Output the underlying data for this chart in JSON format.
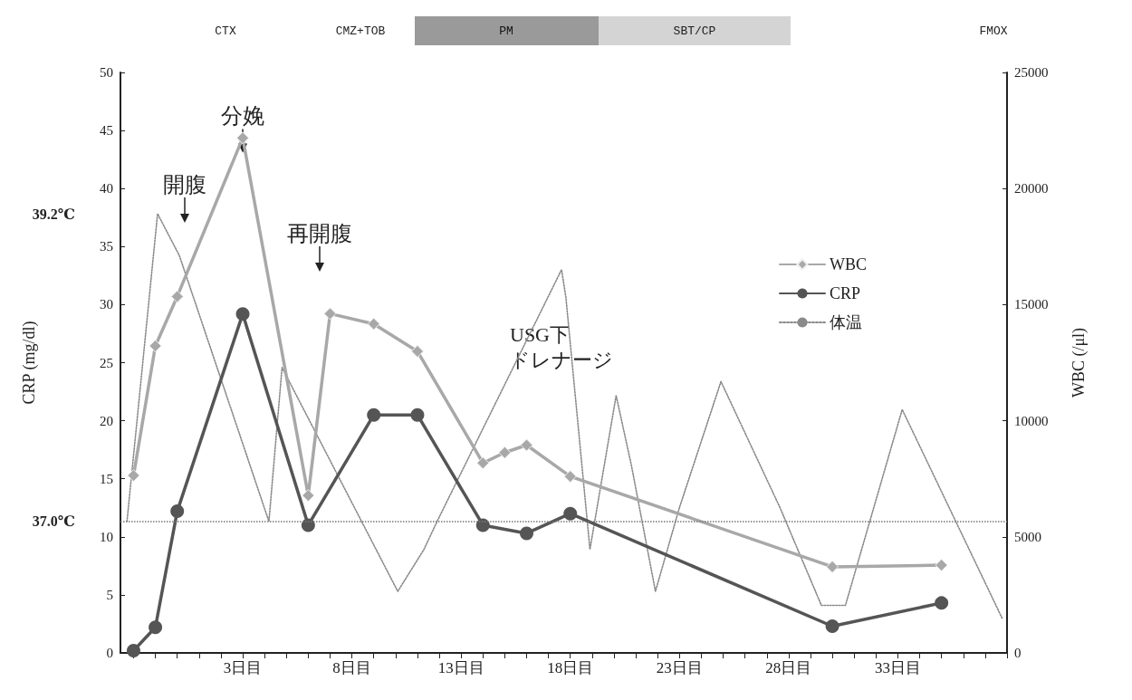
{
  "chart_data": {
    "type": "line",
    "ylabel": "CRP (mg/dl)",
    "y2label": "WBC (/μl)",
    "xlim": [
      -2.6,
      38
    ],
    "xticks": [
      {
        "value": -2,
        "label": null
      },
      {
        "value": -1,
        "label": null
      },
      {
        "value": 0,
        "label": null
      },
      {
        "value": 1,
        "label": null
      },
      {
        "value": 2,
        "label": null
      },
      {
        "value": 3,
        "label": "3日目"
      },
      {
        "value": 4,
        "label": null
      },
      {
        "value": 5,
        "label": null
      },
      {
        "value": 6,
        "label": null
      },
      {
        "value": 7,
        "label": null
      },
      {
        "value": 8,
        "label": "8日目"
      },
      {
        "value": 9,
        "label": null
      },
      {
        "value": 10,
        "label": null
      },
      {
        "value": 11,
        "label": null
      },
      {
        "value": 12,
        "label": null
      },
      {
        "value": 13,
        "label": "13日目"
      },
      {
        "value": 14,
        "label": null
      },
      {
        "value": 15,
        "label": null
      },
      {
        "value": 16,
        "label": null
      },
      {
        "value": 17,
        "label": null
      },
      {
        "value": 18,
        "label": "18日目"
      },
      {
        "value": 19,
        "label": null
      },
      {
        "value": 20,
        "label": null
      },
      {
        "value": 21,
        "label": null
      },
      {
        "value": 22,
        "label": null
      },
      {
        "value": 23,
        "label": "23日目"
      },
      {
        "value": 24,
        "label": null
      },
      {
        "value": 25,
        "label": null
      },
      {
        "value": 26,
        "label": null
      },
      {
        "value": 27,
        "label": null
      },
      {
        "value": 28,
        "label": "28日目"
      },
      {
        "value": 29,
        "label": null
      },
      {
        "value": 30,
        "label": null
      },
      {
        "value": 31,
        "label": null
      },
      {
        "value": 32,
        "label": null
      },
      {
        "value": 33,
        "label": "33日目"
      },
      {
        "value": 34,
        "label": null
      },
      {
        "value": 35,
        "label": null
      },
      {
        "value": 36,
        "label": null
      },
      {
        "value": 37,
        "label": null
      },
      {
        "value": 38,
        "label": null
      }
    ],
    "ylim": [
      0,
      50
    ],
    "yticks": [
      0,
      5,
      10,
      15,
      20,
      25,
      30,
      35,
      40,
      45,
      50
    ],
    "y2lim": [
      0,
      25000
    ],
    "y2ticks": [
      0,
      5000,
      10000,
      15000,
      20000,
      25000
    ],
    "y3lim": [
      36.06,
      40.21
    ],
    "y3ticks": [
      {
        "value": 37,
        "label": "37.0℃"
      },
      {
        "value": 39.2,
        "label": "39.2℃"
      }
    ],
    "grid": false,
    "legend": "right",
    "series": [
      {
        "name": "WBC",
        "color": "#a8a8a8",
        "axis": "y2",
        "marker": "diamond",
        "x": [
          -2,
          -1,
          0,
          3,
          6,
          7,
          9,
          11,
          14,
          15,
          16,
          18,
          30,
          35
        ],
        "values": [
          7640,
          13220,
          15350,
          22180,
          6780,
          14610,
          14170,
          12990,
          8180,
          8630,
          8950,
          7600,
          3710,
          3780
        ]
      },
      {
        "name": "CRP",
        "color": "#555555",
        "axis": "y",
        "marker": "circle",
        "x": [
          -2,
          -1,
          0,
          3,
          6,
          9,
          11,
          14,
          16,
          18,
          30,
          35
        ],
        "values": [
          0.2,
          2.2,
          12.2,
          29.2,
          11.0,
          20.5,
          20.5,
          11.0,
          10.3,
          12.0,
          2.3,
          4.3
        ]
      },
      {
        "name": "体温",
        "color": "#8a8a8a",
        "axis": "y3",
        "marker": "none",
        "line_style": "dotted",
        "x": [
          -2.3,
          -0.9,
          0.1,
          4.2,
          4.8,
          10.1,
          11.3,
          11.9,
          17.6,
          17.8,
          18.9,
          20.1,
          20.8,
          21.9,
          23.0,
          24.9,
          27.6,
          29.5,
          30.6,
          33.2,
          37.8
        ],
        "values": [
          37.0,
          39.2,
          38.9,
          37.0,
          38.1,
          36.5,
          36.8,
          37.0,
          38.8,
          38.6,
          36.8,
          37.9,
          37.4,
          36.5,
          37.1,
          38.0,
          37.1,
          36.4,
          36.4,
          37.8,
          36.3
        ]
      }
    ],
    "ref_lines": [
      {
        "axis": "y3",
        "value": 37,
        "line_style": "dotted",
        "color": "#777777"
      }
    ],
    "annotations": [
      "CTX",
      "CMZ+TOB",
      "PM",
      "SBT/CP",
      "FMOX",
      {
        "text": "分娩",
        "x": 3,
        "y": 43.1
      },
      "開腹",
      "再開腹",
      "USG下",
      "ドレナージ"
    ]
  }
}
